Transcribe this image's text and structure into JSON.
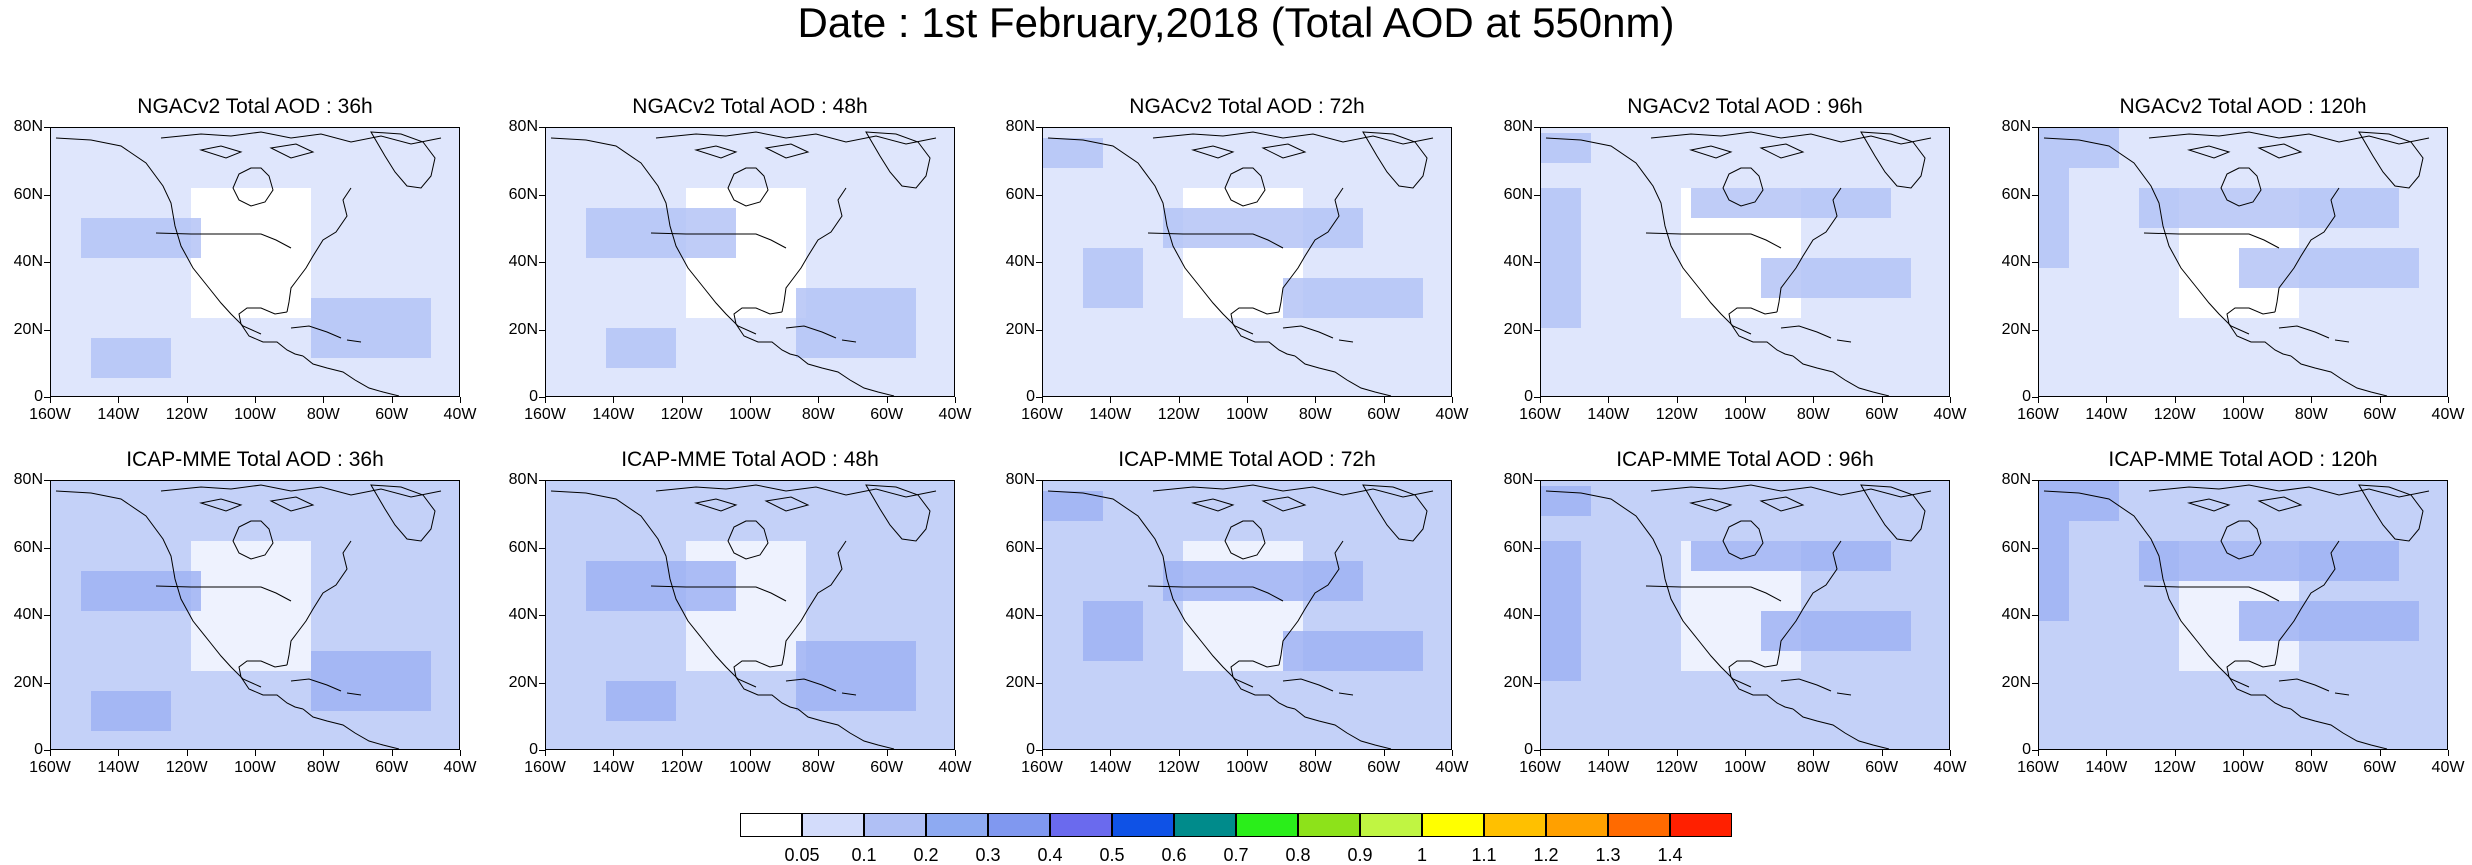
{
  "title": "Date : 1st February,2018 (Total AOD at 550nm)",
  "lat_labels": [
    "80N",
    "60N",
    "40N",
    "20N",
    "0"
  ],
  "lon_labels": [
    "160W",
    "140W",
    "120W",
    "100W",
    "80W",
    "60W",
    "40W"
  ],
  "panels": [
    {
      "title": "NGACv2 Total AOD : 36h"
    },
    {
      "title": "NGACv2 Total AOD : 48h"
    },
    {
      "title": "NGACv2 Total AOD : 72h"
    },
    {
      "title": "NGACv2 Total AOD : 96h"
    },
    {
      "title": "NGACv2 Total AOD : 120h"
    },
    {
      "title": "ICAP-MME Total AOD : 36h"
    },
    {
      "title": "ICAP-MME Total AOD : 48h"
    },
    {
      "title": "ICAP-MME Total AOD : 72h"
    },
    {
      "title": "ICAP-MME Total AOD : 96h"
    },
    {
      "title": "ICAP-MME Total AOD : 120h"
    }
  ],
  "colorbar": {
    "labels": [
      "0.05",
      "0.1",
      "0.2",
      "0.3",
      "0.4",
      "0.5",
      "0.6",
      "0.7",
      "0.8",
      "0.9",
      "1",
      "1.1",
      "1.2",
      "1.3",
      "1.4"
    ],
    "colors": [
      "#ffffff",
      "#d3dcfb",
      "#b0c0f5",
      "#8eaaf2",
      "#8098f0",
      "#6a6aee",
      "#0f52e6",
      "#008b8b",
      "#2aee1a",
      "#8de21a",
      "#c0f542",
      "#ffff00",
      "#ffc000",
      "#ffa000",
      "#ff6a00",
      "#ff2000"
    ]
  }
}
